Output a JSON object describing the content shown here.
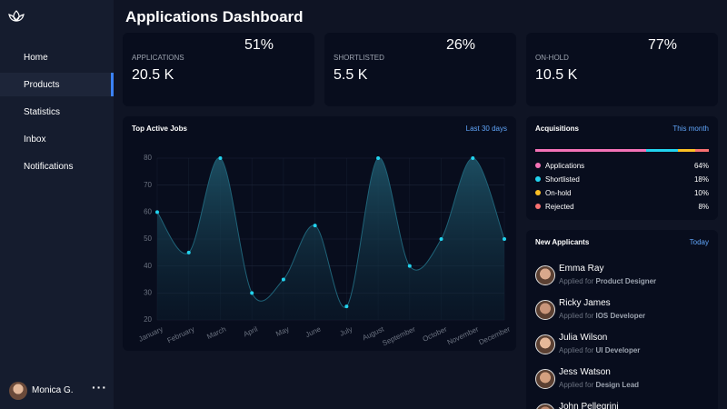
{
  "sidebar": {
    "nav": [
      "Home",
      "Products",
      "Statistics",
      "Inbox",
      "Notifications"
    ],
    "active": 1,
    "user": "Monica G."
  },
  "header": {
    "title": "Applications Dashboard"
  },
  "stats": [
    {
      "label": "APPLICATIONS",
      "value": "20.5 K",
      "percent": 51,
      "percent_label": "51%",
      "color": "#f472b6",
      "track_color": "#f9a8d4"
    },
    {
      "label": "SHORTLISTED",
      "value": "5.5 K",
      "percent": 26,
      "percent_label": "26%",
      "color": "#1d4ed8",
      "track_color": "#93c5fd"
    },
    {
      "label": "ON-HOLD",
      "value": "10.5 K",
      "percent": 77,
      "percent_label": "77%",
      "color": "#f59e0b",
      "track_color": "#fcd34d"
    }
  ],
  "chart_data": {
    "type": "area",
    "title": "Top Active Jobs",
    "link": "Last 30 days",
    "categories": [
      "January",
      "February",
      "March",
      "April",
      "May",
      "June",
      "July",
      "August",
      "September",
      "October",
      "November",
      "December"
    ],
    "values": [
      60,
      45,
      80,
      30,
      35,
      55,
      25,
      80,
      40,
      50,
      80,
      50
    ],
    "color": "#22d3ee",
    "ylim": [
      20,
      80
    ],
    "yticks": [
      20,
      30,
      40,
      50,
      60,
      70,
      80
    ],
    "grid": true
  },
  "acquisitions": {
    "title": "Acquisitions",
    "link": "This month",
    "items": [
      {
        "name": "Applications",
        "value": 64,
        "label": "64%",
        "color": "#f472b6"
      },
      {
        "name": "Shortlisted",
        "value": 18,
        "label": "18%",
        "color": "#22d3ee"
      },
      {
        "name": "On-hold",
        "value": 10,
        "label": "10%",
        "color": "#fbbf24"
      },
      {
        "name": "Rejected",
        "value": 8,
        "label": "8%",
        "color": "#f87171"
      }
    ]
  },
  "applicants": {
    "title": "New Applicants",
    "link": "Today",
    "items": [
      {
        "name": "Emma Ray",
        "note": "Applied for",
        "role": "Product Designer"
      },
      {
        "name": "Ricky James",
        "note": "Applied for",
        "role": "IOS Developer"
      },
      {
        "name": "Julia Wilson",
        "note": "Applied for",
        "role": "UI Developer"
      },
      {
        "name": "Jess Watson",
        "note": "Applied for",
        "role": "Design Lead"
      },
      {
        "name": "John Pellegrini"
      }
    ]
  }
}
